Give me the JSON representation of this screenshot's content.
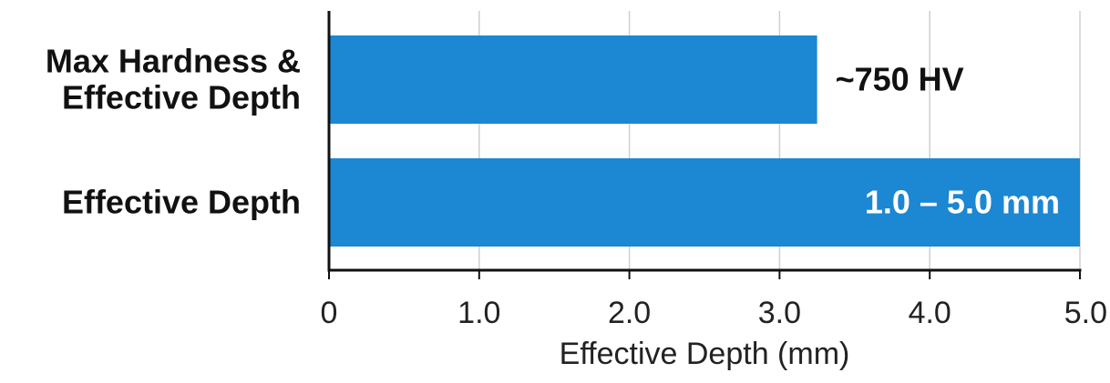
{
  "chart_data": {
    "type": "bar",
    "orientation": "horizontal",
    "categories": [
      "Max Hardness & Effective Depth",
      "Effective Depth"
    ],
    "category_lines": [
      [
        "Max Hardness &",
        "Effective Depth"
      ],
      [
        "Effective Depth"
      ]
    ],
    "values": [
      3.25,
      5.0
    ],
    "data_labels": [
      "~750 HV",
      "1.0 – 5.0 mm"
    ],
    "data_label_placement": [
      "outside",
      "inside"
    ],
    "xlabel": "Effective Depth (mm)",
    "ylabel": "",
    "title": "",
    "xlim": [
      0,
      5
    ],
    "xticks": [
      0,
      1,
      2,
      3,
      4,
      5
    ],
    "xtick_labels": [
      "0",
      "1.0",
      "2.0",
      "3.0",
      "4.0",
      "5.0"
    ],
    "grid": "vertical",
    "legend": "none",
    "colors": {
      "bar": "#1c87d2",
      "grid": "#cfcfcf",
      "axis": "#111111",
      "label_outside": "#111111",
      "label_inside": "#ffffff"
    }
  }
}
